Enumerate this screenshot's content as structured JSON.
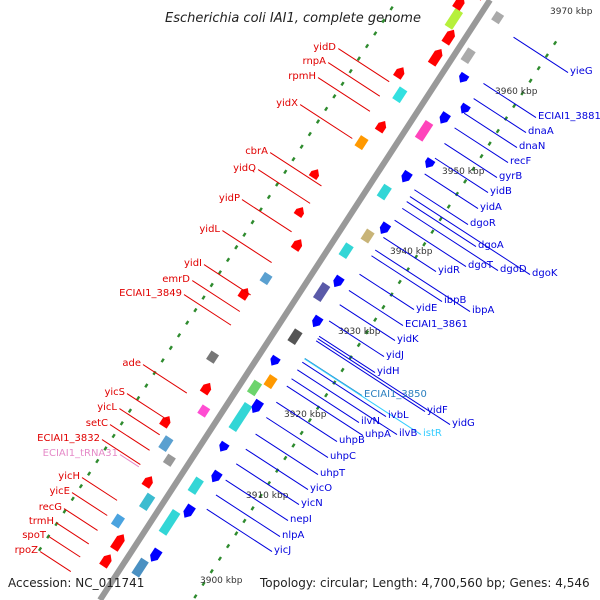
{
  "title": "Escherichia coli IAI1, complete genome",
  "footer": {
    "accession": "Accession: NC_011741",
    "topology": "Topology: circular; Length: 4,700,560 bp; Genes: 4,546"
  },
  "kbp_marks": [
    "3970 kbp",
    "3960 kbp",
    "3950 kbp",
    "3940 kbp",
    "3930 kbp",
    "3920 kbp",
    "3910 kbp",
    "3900 kbp"
  ],
  "colors": {
    "forward": "#ff0000",
    "reverse": "#0000ff",
    "rna": "#ff69b4",
    "backbone": "#808080",
    "ticks": "#2e8b2e",
    "pseudo": "#33ccff"
  },
  "left_labels": [
    "yidD",
    "rnpA",
    "rpmH",
    "yidX",
    "cbrA",
    "yidQ",
    "yidP",
    "yidL",
    "yidI",
    "emrD",
    "ECIAI1_3849",
    "ade",
    "yicS",
    "yicL",
    "setC",
    "ECIAI1_3832",
    "ECIAI1_tRNA31",
    "yicH",
    "yicE",
    "recG",
    "trmH",
    "spoT",
    "rpoZ"
  ],
  "right_labels": [
    "yieG",
    "ECIAI1_3881",
    "dnaA",
    "dnaN",
    "recF",
    "gyrB",
    "yidB",
    "yidA",
    "dgoR",
    "dgoA",
    "dgoT",
    "dgoD",
    "dgoK",
    "yidR",
    "ibpB",
    "ibpA",
    "yidE",
    "ECIAI1_3861",
    "yidK",
    "yidJ",
    "yidH",
    "ECIAI1_3850",
    "yidF",
    "yidG",
    "ivbL",
    "ilvN",
    "ilvB",
    "istR",
    "uhpA",
    "uhpB",
    "uhpC",
    "uhpT",
    "yicO",
    "yicN",
    "nepI",
    "nlpA",
    "yicJ"
  ]
}
